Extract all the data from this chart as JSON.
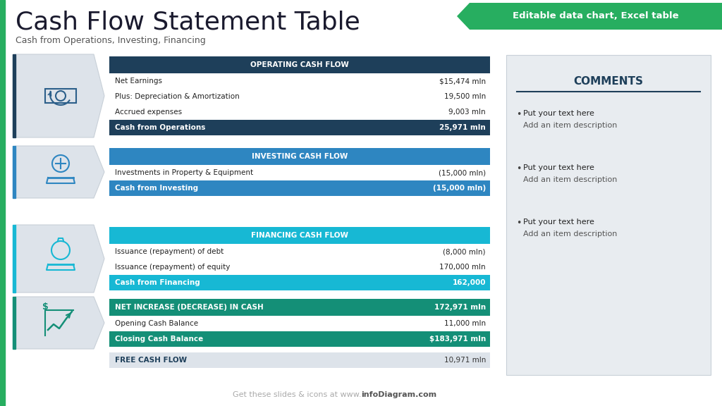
{
  "title": "Cash Flow Statement Table",
  "subtitle": "Cash from Operations, Investing, Financing",
  "banner_text": "Editable data chart, Excel table",
  "banner_color": "#27ae60",
  "left_bar_color": "#27ae60",
  "bg_color": "#ffffff",
  "footer": "Get these slides & icons at www.infoDiagram.com",
  "footer_bold": "infoDiagram.com",
  "footer_color": "#aaaaaa",
  "sections": [
    {
      "header": "OPERATING CASH FLOW",
      "header_bg": "#1e3f5a",
      "header_color": "#ffffff",
      "icon_color": "#2c5f8a",
      "left_bar": "#1e3f5a",
      "rows": [
        {
          "label": "Net Earnings",
          "value": "$15,474 mln",
          "bold": false,
          "summary": false
        },
        {
          "label": "Plus: Depreciation & Amortization",
          "value": "19,500 mln",
          "bold": false,
          "summary": false
        },
        {
          "label": "Accrued expenses",
          "value": "9,003 mln",
          "bold": false,
          "summary": false
        },
        {
          "label": "Cash from Operations",
          "value": "25,971 mln",
          "bold": true,
          "summary": true
        }
      ],
      "summary_bg": "#1e3f5a",
      "summary_color": "#ffffff"
    },
    {
      "header": "INVESTING CASH FLOW",
      "header_bg": "#2e86c1",
      "header_color": "#ffffff",
      "icon_color": "#2e86c1",
      "left_bar": "#2e86c1",
      "rows": [
        {
          "label": "Investments in Property & Equipment",
          "value": "(15,000 mln)",
          "bold": false,
          "summary": false
        },
        {
          "label": "Cash from Investing",
          "value": "(15,000 mln)",
          "bold": true,
          "summary": true
        }
      ],
      "summary_bg": "#2e86c1",
      "summary_color": "#ffffff"
    },
    {
      "header": "FINANCING CASH FLOW",
      "header_bg": "#17b8d4",
      "header_color": "#ffffff",
      "icon_color": "#17b8d4",
      "left_bar": "#17b8d4",
      "rows": [
        {
          "label": "Issuance (repayment) of debt",
          "value": "(8,000 mln)",
          "bold": false,
          "summary": false
        },
        {
          "label": "Issuance (repayment) of equity",
          "value": "170,000 mln",
          "bold": false,
          "summary": false
        },
        {
          "label": "Cash from Financing",
          "value": "162,000",
          "bold": true,
          "summary": true
        }
      ],
      "summary_bg": "#17b8d4",
      "summary_color": "#ffffff"
    },
    {
      "header": "NET INCREASE (DECREASE) IN CASH",
      "header_bg": "#148f77",
      "header_color": "#ffffff",
      "icon_color": "#148f77",
      "left_bar": "#148f77",
      "header_value": "172,971 mln",
      "rows": [
        {
          "label": "Opening Cash Balance",
          "value": "11,000 mln",
          "bold": false,
          "summary": false
        },
        {
          "label": "Closing Cash Balance",
          "value": "$183,971 mln",
          "bold": true,
          "summary": true
        }
      ],
      "summary_bg": "#148f77",
      "summary_color": "#ffffff"
    }
  ],
  "free_cf": {
    "header": "FREE CASH FLOW",
    "value": "10,971 mln",
    "bg": "#dde3ea",
    "label_color": "#1e3f5a",
    "value_color": "#333333"
  },
  "comments_title": "COMMENTS",
  "comments_title_color": "#1e3f5a",
  "comments_underline_color": "#1e3f5a",
  "comments_bg": "#e8ecf0",
  "comments_border": "#c8d0d8",
  "comments_items": [
    [
      "Put your text here",
      "Add an item description"
    ],
    [
      "Put your text here",
      "Add an item description"
    ],
    [
      "Put your text here",
      "Add an item description"
    ]
  ],
  "icon_box_color": "#dde3ea",
  "icon_box_border": "#c8d0d8"
}
